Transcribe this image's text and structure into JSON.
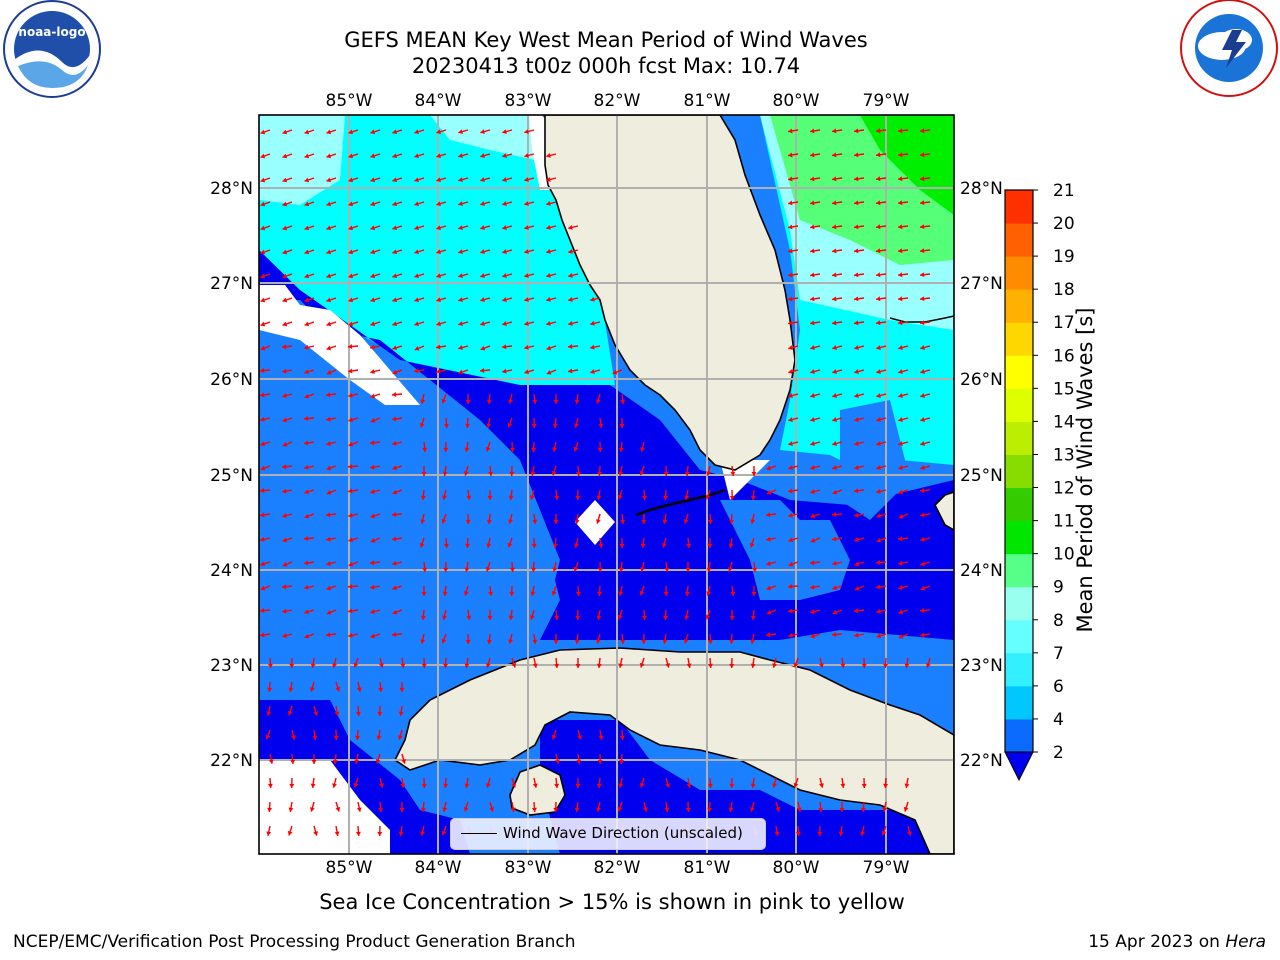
{
  "title_line1": "GEFS MEAN Key West Mean Period of Wind Waves",
  "title_line2": "20230413 t00z 000h fcst   Max: 10.74",
  "lon_labels": [
    "85°W",
    "84°W",
    "83°W",
    "82°W",
    "81°W",
    "80°W",
    "79°W"
  ],
  "lat_labels": [
    "28°N",
    "27°N",
    "26°N",
    "25°N",
    "24°N",
    "23°N",
    "22°N"
  ],
  "colorbar": {
    "label": "Mean Period of Wind Waves [s]",
    "ticks": [
      "2",
      "4",
      "6",
      "7",
      "8",
      "9",
      "10",
      "11",
      "12",
      "13",
      "14",
      "15",
      "16",
      "17",
      "18",
      "19",
      "20",
      "21"
    ],
    "colors": [
      "#0a6cff",
      "#00c8ff",
      "#33f0ff",
      "#66ffff",
      "#99ffee",
      "#55ff88",
      "#00e600",
      "#33cc00",
      "#88dd00",
      "#bbee00",
      "#ddff00",
      "#ffff00",
      "#ffd700",
      "#ffb000",
      "#ff8c00",
      "#ff6000",
      "#ff3000",
      "#ff0000"
    ],
    "under_color": "#0000ee"
  },
  "legend_label": "Wind Wave Direction (unscaled)",
  "caption": "Sea Ice Concentration > 15% is shown in pink to yellow",
  "footer_left": "NCEP/EMC/Verification Post Processing Product Generation Branch",
  "footer_right_date": "15 Apr 2023 on ",
  "footer_right_machine": "Hera",
  "logos": [
    "noaa-logo",
    "nws-logo"
  ],
  "colors": {
    "land": "#eeedde",
    "deep_blue": "#0000ee",
    "mid_blue": "#1a80ff",
    "cyan": "#00ffff",
    "light_cyan": "#99ffff",
    "green": "#55ff77",
    "bright_green": "#00ee00",
    "arrow": "#ff0000",
    "grid": "#b0b0b0"
  }
}
